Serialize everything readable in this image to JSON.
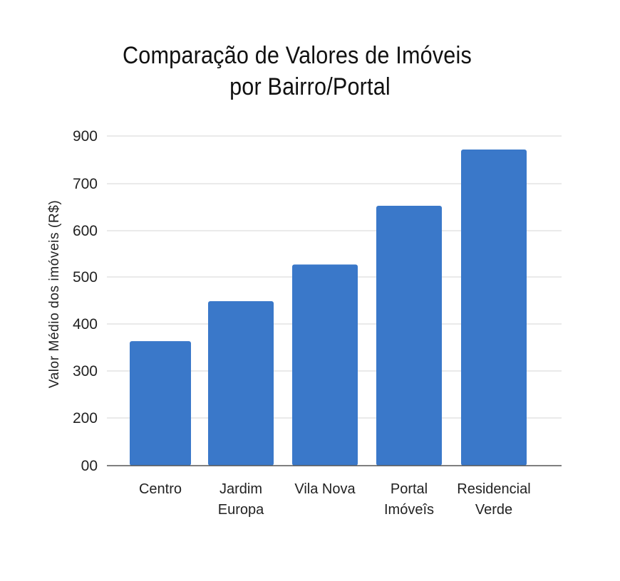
{
  "chart_data": {
    "type": "bar",
    "title": [
      "Comparação de Valores de Imóveis",
      "por Bairro/Portal"
    ],
    "ylabel": "Valor Médio dos imóveis (R$)",
    "xlabel": "",
    "categories": [
      [
        "Centro"
      ],
      [
        "Jardim",
        "Europa"
      ],
      [
        "Vila Nova"
      ],
      [
        "Portal",
        "Imóveîs"
      ],
      [
        "Residencial",
        "Verde"
      ]
    ],
    "values": [
      365,
      450,
      528,
      653,
      870
    ],
    "yticks": [
      "900",
      "700",
      "600",
      "500",
      "400",
      "300",
      "200",
      "00"
    ],
    "ylim": [
      100,
      900
    ],
    "grid": true,
    "bar_color": "#3a78c9"
  }
}
